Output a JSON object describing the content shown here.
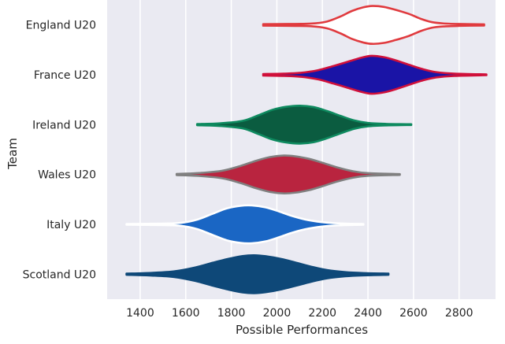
{
  "chart_data": {
    "type": "violin",
    "orientation": "horizontal",
    "xlabel": "Possible Performances",
    "ylabel": "Team",
    "x_ticks": [
      1400,
      1600,
      1800,
      2000,
      2200,
      2400,
      2600,
      2800
    ],
    "x_tick_labels": [
      "1400",
      "1600",
      "1800",
      "2000",
      "2200",
      "2400",
      "2600",
      "2800"
    ],
    "xlim": [
      1255,
      2960
    ],
    "grid": true,
    "background": "#EAEAF2",
    "series": [
      {
        "name": "England U20",
        "fill": "#FFFFFF",
        "edge": "#E03A3E",
        "min": 1940,
        "max": 2910,
        "profile": [
          [
            1940,
            0.04
          ],
          [
            2050,
            0.05
          ],
          [
            2150,
            0.07
          ],
          [
            2220,
            0.18
          ],
          [
            2280,
            0.45
          ],
          [
            2330,
            0.74
          ],
          [
            2380,
            0.93
          ],
          [
            2420,
            1.0
          ],
          [
            2470,
            0.95
          ],
          [
            2520,
            0.8
          ],
          [
            2580,
            0.58
          ],
          [
            2630,
            0.33
          ],
          [
            2680,
            0.15
          ],
          [
            2730,
            0.08
          ],
          [
            2800,
            0.05
          ],
          [
            2910,
            0.03
          ]
        ]
      },
      {
        "name": "France U20",
        "fill": "#1A14A6",
        "edge": "#D0103A",
        "min": 1940,
        "max": 2920,
        "profile": [
          [
            1940,
            0.04
          ],
          [
            2030,
            0.06
          ],
          [
            2100,
            0.1
          ],
          [
            2180,
            0.24
          ],
          [
            2250,
            0.47
          ],
          [
            2320,
            0.72
          ],
          [
            2370,
            0.9
          ],
          [
            2415,
            1.0
          ],
          [
            2470,
            0.93
          ],
          [
            2520,
            0.77
          ],
          [
            2580,
            0.53
          ],
          [
            2640,
            0.3
          ],
          [
            2700,
            0.14
          ],
          [
            2780,
            0.06
          ],
          [
            2920,
            0.02
          ]
        ]
      },
      {
        "name": "Ireland U20",
        "fill": "#0B5C40",
        "edge": "#0E8A5F",
        "min": 1650,
        "max": 2590,
        "profile": [
          [
            1650,
            0.03
          ],
          [
            1750,
            0.07
          ],
          [
            1850,
            0.2
          ],
          [
            1920,
            0.5
          ],
          [
            1980,
            0.78
          ],
          [
            2040,
            0.94
          ],
          [
            2100,
            1.0
          ],
          [
            2160,
            0.93
          ],
          [
            2220,
            0.72
          ],
          [
            2280,
            0.46
          ],
          [
            2340,
            0.22
          ],
          [
            2400,
            0.09
          ],
          [
            2480,
            0.04
          ],
          [
            2590,
            0.02
          ]
        ]
      },
      {
        "name": "Wales U20",
        "fill": "#B9243F",
        "edge": "#808080",
        "min": 1560,
        "max": 2540,
        "profile": [
          [
            1560,
            0.03
          ],
          [
            1650,
            0.07
          ],
          [
            1760,
            0.2
          ],
          [
            1840,
            0.45
          ],
          [
            1910,
            0.73
          ],
          [
            1970,
            0.92
          ],
          [
            2030,
            1.0
          ],
          [
            2080,
            0.96
          ],
          [
            2140,
            0.83
          ],
          [
            2200,
            0.62
          ],
          [
            2260,
            0.39
          ],
          [
            2330,
            0.18
          ],
          [
            2400,
            0.07
          ],
          [
            2540,
            0.02
          ]
        ]
      },
      {
        "name": "Italy U20",
        "fill": "#1A66C4",
        "edge": "#FFFFFF",
        "min": 1340,
        "max": 2380,
        "profile": [
          [
            1340,
            0.02
          ],
          [
            1500,
            0.04
          ],
          [
            1580,
            0.08
          ],
          [
            1650,
            0.25
          ],
          [
            1720,
            0.57
          ],
          [
            1780,
            0.84
          ],
          [
            1840,
            0.98
          ],
          [
            1890,
            1.0
          ],
          [
            1950,
            0.9
          ],
          [
            2010,
            0.68
          ],
          [
            2070,
            0.43
          ],
          [
            2140,
            0.22
          ],
          [
            2220,
            0.09
          ],
          [
            2300,
            0.04
          ],
          [
            2380,
            0.02
          ]
        ]
      },
      {
        "name": "Scotland U20",
        "fill": "#0E4878",
        "edge": "#0E4878",
        "min": 1340,
        "max": 2490,
        "profile": [
          [
            1340,
            0.03
          ],
          [
            1450,
            0.07
          ],
          [
            1550,
            0.15
          ],
          [
            1640,
            0.35
          ],
          [
            1720,
            0.61
          ],
          [
            1790,
            0.82
          ],
          [
            1850,
            0.96
          ],
          [
            1900,
            1.0
          ],
          [
            1950,
            0.95
          ],
          [
            2020,
            0.8
          ],
          [
            2080,
            0.62
          ],
          [
            2150,
            0.4
          ],
          [
            2220,
            0.22
          ],
          [
            2300,
            0.11
          ],
          [
            2380,
            0.06
          ],
          [
            2490,
            0.03
          ]
        ]
      }
    ]
  }
}
